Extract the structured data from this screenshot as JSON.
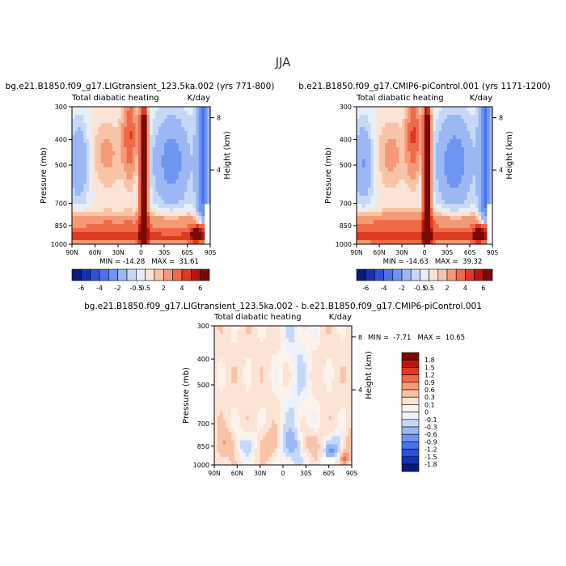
{
  "figure": {
    "title": "JJA"
  },
  "chart_data": [
    {
      "type": "heatmap",
      "title": "bg.e21.B1850.f09_g17.LIGtransient_123.5ka.002 (yrs 771-800)",
      "subtitle_left": "Total diabatic heating",
      "subtitle_right": "K/day",
      "ylabel": "Pressure (mb)",
      "ylabel_right": "Height (km)",
      "x_ticks": [
        "90N",
        "60N",
        "30N",
        "0",
        "30S",
        "60S",
        "90S"
      ],
      "y_ticks": [
        "300",
        "400",
        "500",
        "700",
        "850",
        "1000"
      ],
      "y_right_ticks": [
        "8",
        "4"
      ],
      "stats": "MIN = -14.28   MAX =  31.61",
      "min": -14.28,
      "max": 31.61
    },
    {
      "type": "heatmap",
      "title": "b.e21.B1850.f09_g17.CMIP6-piControl.001 (yrs 1171-1200)",
      "subtitle_left": "Total diabatic heating",
      "subtitle_right": "K/day",
      "ylabel": "Pressure (mb)",
      "ylabel_right": "Height (km)",
      "x_ticks": [
        "90N",
        "60N",
        "30N",
        "0",
        "30S",
        "60S",
        "90S"
      ],
      "y_ticks": [
        "300",
        "400",
        "500",
        "700",
        "850",
        "1000"
      ],
      "y_right_ticks": [
        "8",
        "4"
      ],
      "stats": "MIN = -14.63   MAX =  39.32",
      "min": -14.63,
      "max": 39.32
    },
    {
      "type": "heatmap",
      "title": "bg.e21.B1850.f09_g17.LIGtransient_123.5ka.002 - b.e21.B1850.f09_g17.CMIP6-piControl.001",
      "subtitle_left": "Total diabatic heating",
      "subtitle_right": "K/day",
      "ylabel": "Pressure (mb)",
      "ylabel_right": "Height (km)",
      "x_ticks": [
        "90N",
        "60N",
        "30N",
        "0",
        "30S",
        "60S",
        "90S"
      ],
      "y_ticks": [
        "300",
        "400",
        "500",
        "700",
        "850",
        "1000"
      ],
      "y_right_ticks": [
        "8",
        "4"
      ],
      "stats": "MIN =  -7.71   MAX =  10.65",
      "min": -7.71,
      "max": 10.65
    }
  ],
  "colorbar_main": {
    "labels": [
      "-6",
      "-4",
      "-2",
      "-0.5",
      "0.5",
      "2",
      "4",
      "6"
    ],
    "colors": [
      "#0a1a7a",
      "#1a2fb0",
      "#2e50d8",
      "#4a72ec",
      "#6e95f2",
      "#9bb8f4",
      "#c6d8f6",
      "#e7eef9",
      "#fbe4d6",
      "#f8c4a8",
      "#f49a78",
      "#ef6a48",
      "#dd3a22",
      "#b8170c",
      "#7a0a04"
    ]
  },
  "colorbar_diff": {
    "labels": [
      "1.8",
      "1.5",
      "1.2",
      "0.9",
      "0.6",
      "0.3",
      "0.1",
      "0",
      "-0.1",
      "-0.3",
      "-0.6",
      "-0.9",
      "-1.2",
      "-1.5",
      "-1.8"
    ],
    "colors": [
      "#7a0a04",
      "#b8170c",
      "#dd3a22",
      "#ef6a48",
      "#f49a78",
      "#f8c4a8",
      "#fbe4d6",
      "#fdf3ec",
      "#edf2fb",
      "#c6d8f6",
      "#9bb8f4",
      "#6e95f2",
      "#4a72ec",
      "#2e50d8",
      "#1a2fb0",
      "#0a1a7a"
    ]
  }
}
